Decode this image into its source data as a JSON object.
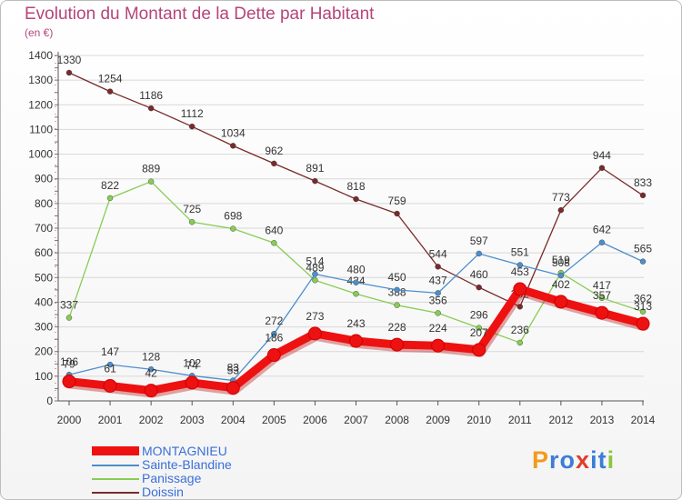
{
  "chart": {
    "title": "Evolution du Montant de la Dette par Habitant",
    "unit_label": "(en €)"
  },
  "logo": {
    "letters": [
      "P",
      "r",
      "o",
      "x",
      "i",
      "t",
      "i"
    ],
    "colors": [
      "#f29a1f",
      "#3b7dd8",
      "#3b7dd8",
      "#e23b2c",
      "#3b7dd8",
      "#3b7dd8",
      "#8cc63f"
    ]
  },
  "chart_data": {
    "type": "line",
    "title": "Evolution du Montant de la Dette par Habitant",
    "ylabel": "(en €)",
    "xlabel": "",
    "categories": [
      "2000",
      "2001",
      "2002",
      "2003",
      "2004",
      "2005",
      "2006",
      "2007",
      "2008",
      "2009",
      "2010",
      "2011",
      "2012",
      "2013",
      "2014"
    ],
    "ylim": [
      0,
      1400
    ],
    "yticks": [
      0,
      100,
      200,
      300,
      400,
      500,
      600,
      700,
      800,
      900,
      1000,
      1100,
      1200,
      1300,
      1400
    ],
    "grid": "horizontal",
    "legend_position": "bottom-left",
    "series": [
      {
        "name": "Doissin",
        "color": "#7a2a2a",
        "values": [
          1330,
          1254,
          1186,
          1112,
          1034,
          962,
          891,
          818,
          759,
          544,
          460,
          382,
          773,
          944,
          833
        ]
      },
      {
        "name": "Panissage",
        "color": "#88cc55",
        "values": [
          337,
          822,
          889,
          725,
          698,
          640,
          489,
          434,
          388,
          356,
          296,
          236,
          519,
          417,
          362
        ]
      },
      {
        "name": "Sainte-Blandine",
        "color": "#4d8fcc",
        "values": [
          106,
          147,
          128,
          102,
          83,
          272,
          514,
          480,
          450,
          437,
          597,
          551,
          508,
          642,
          565
        ]
      },
      {
        "name": "MONTAGNIEU",
        "color": "#ee1111",
        "values": [
          79,
          61,
          42,
          74,
          53,
          186,
          273,
          243,
          228,
          224,
          207,
          453,
          402,
          357,
          313
        ]
      }
    ]
  }
}
